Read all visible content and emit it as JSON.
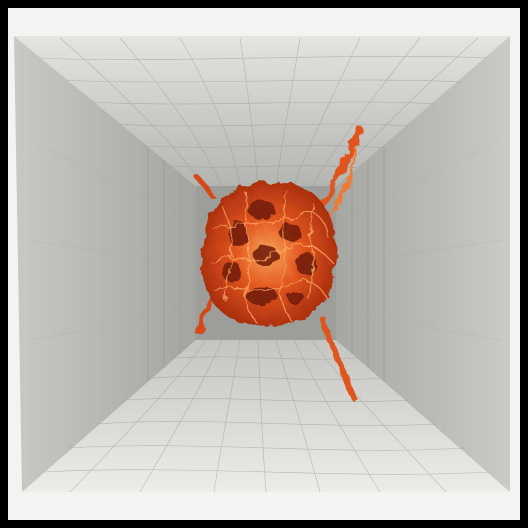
{
  "image": {
    "subject": "orange-fibrous-sphere-in-grey-box",
    "colors": {
      "frame": "#000000",
      "paper": "#f2f2f0",
      "ceiling": "#cfcfcc",
      "floor": "#d9d9d6",
      "left_wall": "#b9b9b6",
      "right_wall": "#bdbdba",
      "back_wall": "#9a9a97",
      "mesh": "#8e8e8b",
      "blob_core": "#d9461b",
      "blob_glow": "#f08a3a",
      "blob_dark": "#6a1607"
    }
  }
}
